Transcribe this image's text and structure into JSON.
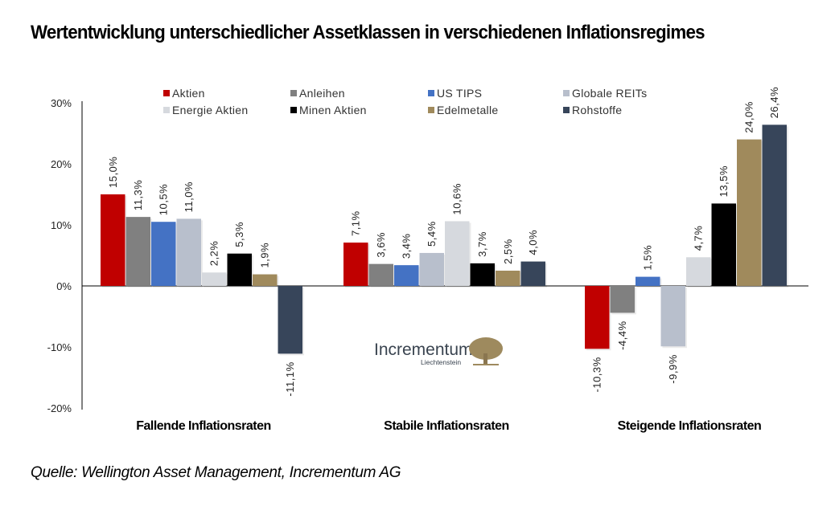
{
  "title": "Wertentwicklung unterschiedlicher Assetklassen in verschiedenen Inflationsregimes",
  "source": "Quelle: Wellington Asset Management, Incrementum AG",
  "logo": {
    "name": "Incrementum",
    "subtitle": "Liechtenstein",
    "text_color": "#3a4450",
    "tree_color": "#9e8a5e"
  },
  "chart_data": {
    "type": "bar",
    "title": "Wertentwicklung unterschiedlicher Assetklassen in verschiedenen Inflationsregimes",
    "xlabel": "",
    "ylabel": "",
    "ylim": [
      -20,
      30
    ],
    "yticks": [
      30,
      20,
      10,
      0,
      -10,
      -20
    ],
    "ytick_labels": [
      "30%",
      "20%",
      "10%",
      "0%",
      "-10%",
      "-20%"
    ],
    "grid": false,
    "legend_position": "top",
    "categories": [
      "Fallende Inflationsraten",
      "Stabile Inflationsraten",
      "Steigende Inflationsraten"
    ],
    "series": [
      {
        "name": "Aktien",
        "color": "#c00000",
        "values": [
          15.0,
          7.1,
          -10.3
        ],
        "labels": [
          "15,0%",
          "7,1%",
          "-10,3%"
        ]
      },
      {
        "name": "Anleihen",
        "color": "#808080",
        "values": [
          11.3,
          3.6,
          -4.4
        ],
        "labels": [
          "11,3%",
          "3,6%",
          "-4,4%"
        ]
      },
      {
        "name": "US TIPS",
        "color": "#4472c4",
        "values": [
          10.5,
          3.4,
          1.5
        ],
        "labels": [
          "10,5%",
          "3,4%",
          "1,5%"
        ]
      },
      {
        "name": "Globale REITs",
        "color": "#b8bfcc",
        "values": [
          11.0,
          5.4,
          -9.9
        ],
        "labels": [
          "11,0%",
          "5,4%",
          "-9,9%"
        ]
      },
      {
        "name": "Energie Aktien",
        "color": "#d6d9de",
        "values": [
          2.2,
          10.6,
          4.7
        ],
        "labels": [
          "2,2%",
          "10,6%",
          "4,7%"
        ]
      },
      {
        "name": "Minen Aktien",
        "color": "#000000",
        "values": [
          5.3,
          3.7,
          13.5
        ],
        "labels": [
          "5,3%",
          "3,7%",
          "13,5%"
        ]
      },
      {
        "name": "Edelmetalle",
        "color": "#a08a5c",
        "values": [
          1.9,
          2.5,
          24.0
        ],
        "labels": [
          "1,9%",
          "2,5%",
          "24,0%"
        ]
      },
      {
        "name": "Rohstoffe",
        "color": "#37455a",
        "values": [
          -11.1,
          4.0,
          26.4
        ],
        "labels": [
          "-11,1%",
          "4,0%",
          "26,4%"
        ]
      }
    ]
  }
}
